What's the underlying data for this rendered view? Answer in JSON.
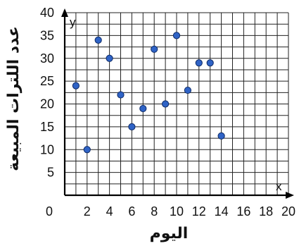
{
  "chart_data": {
    "type": "scatter",
    "xlabel": "اليوم",
    "ylabel": "عدد اللترات المبيعة",
    "x_axis_letter": "x",
    "y_axis_letter": "y",
    "xlim": [
      0,
      20
    ],
    "ylim": [
      0,
      40
    ],
    "x_ticks": [
      "0",
      "2",
      "4",
      "6",
      "8",
      "10",
      "12",
      "14",
      "16",
      "18",
      "20"
    ],
    "y_ticks": [
      "5",
      "10",
      "15",
      "20",
      "25",
      "30",
      "35",
      "40"
    ],
    "grid": true,
    "grid_step_x": 1,
    "grid_step_y": 2.5,
    "point_color": "#2f63c6",
    "points": [
      {
        "x": 1,
        "y": 24
      },
      {
        "x": 2,
        "y": 10
      },
      {
        "x": 3,
        "y": 34
      },
      {
        "x": 4,
        "y": 30
      },
      {
        "x": 5,
        "y": 22
      },
      {
        "x": 6,
        "y": 15
      },
      {
        "x": 7,
        "y": 19
      },
      {
        "x": 8,
        "y": 32
      },
      {
        "x": 9,
        "y": 20
      },
      {
        "x": 10,
        "y": 35
      },
      {
        "x": 11,
        "y": 23
      },
      {
        "x": 12,
        "y": 29
      },
      {
        "x": 13,
        "y": 29
      },
      {
        "x": 14,
        "y": 13
      }
    ]
  }
}
